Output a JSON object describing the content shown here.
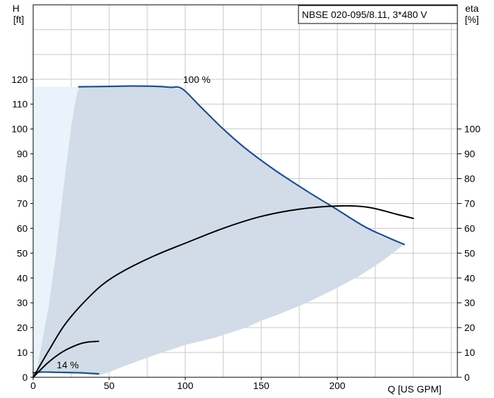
{
  "chart_data": {
    "type": "line",
    "title": "",
    "legend": "NBSE 020-095/8.11, 3*480 V",
    "xlabel": "Q [US GPM]",
    "ylabel_left": [
      "H",
      "[ft]"
    ],
    "ylabel_right": [
      "eta",
      "[%]"
    ],
    "x_ticks": [
      0,
      50,
      100,
      150,
      200
    ],
    "y_ticks_left": [
      0,
      10,
      20,
      30,
      40,
      50,
      60,
      70,
      80,
      90,
      100,
      110,
      120
    ],
    "y_ticks_right": [
      0,
      10,
      20,
      30,
      40,
      50,
      60,
      70,
      80,
      90,
      100
    ],
    "xlim": [
      0,
      279
    ],
    "ylim": [
      0,
      150
    ],
    "grid": true,
    "legend_position": "top-right",
    "annotations": [
      {
        "text": "100 %",
        "x": 100,
        "y": 120
      },
      {
        "text": "14 %",
        "x": 13,
        "y": 2.5
      }
    ],
    "regions": [
      {
        "name": "operating range",
        "color": "#d1dce8",
        "outline": [
          [
            30,
            117
          ],
          [
            55,
            117.2
          ],
          [
            65,
            117.3
          ],
          [
            80,
            117.2
          ],
          [
            98,
            116.2
          ],
          [
            110,
            109
          ],
          [
            125,
            100
          ],
          [
            140,
            92
          ],
          [
            160,
            83
          ],
          [
            180,
            75
          ],
          [
            200,
            67.5
          ],
          [
            220,
            60
          ],
          [
            228,
            57
          ],
          [
            244,
            53.5
          ],
          [
            230,
            47
          ],
          [
            215,
            41
          ],
          [
            200,
            36
          ],
          [
            180,
            30
          ],
          [
            160,
            25
          ],
          [
            150,
            22.8
          ],
          [
            140,
            20
          ],
          [
            120,
            16
          ],
          [
            100,
            13
          ],
          [
            80,
            9
          ],
          [
            60,
            4.5
          ],
          [
            50,
            2
          ],
          [
            43,
            0.8
          ],
          [
            33,
            1.5
          ],
          [
            10,
            1.8
          ],
          [
            2,
            1.8
          ],
          [
            10,
            28
          ],
          [
            15,
            50
          ],
          [
            20,
            77
          ],
          [
            25,
            101
          ],
          [
            28,
            112
          ],
          [
            30,
            117
          ]
        ]
      },
      {
        "name": "extended range",
        "color": "#eaf3fb",
        "outline": [
          [
            0,
            117
          ],
          [
            30,
            117
          ],
          [
            28,
            112
          ],
          [
            25,
            101
          ],
          [
            20,
            77
          ],
          [
            15,
            50
          ],
          [
            10,
            28
          ],
          [
            2,
            1.8
          ],
          [
            0,
            0
          ]
        ]
      }
    ],
    "series": [
      {
        "name": "H 100 %",
        "axis": "left",
        "color": "#1f4e8c",
        "points": [
          [
            30,
            117
          ],
          [
            55,
            117.2
          ],
          [
            65,
            117.3
          ],
          [
            80,
            117.2
          ],
          [
            90,
            116.8
          ],
          [
            98,
            116.2
          ],
          [
            110,
            109
          ],
          [
            125,
            100
          ],
          [
            140,
            92
          ],
          [
            160,
            83
          ],
          [
            180,
            75
          ],
          [
            200,
            67.5
          ],
          [
            220,
            60
          ],
          [
            244,
            53.5
          ]
        ]
      },
      {
        "name": "H 14 %",
        "axis": "left",
        "color": "#1f4e8c",
        "points": [
          [
            0,
            1.8
          ],
          [
            5,
            2.1
          ],
          [
            15,
            2.0
          ],
          [
            30,
            1.8
          ],
          [
            43,
            1.4
          ]
        ]
      },
      {
        "name": "eta 100 %",
        "axis": "right",
        "color": "#000000",
        "points": [
          [
            0,
            0
          ],
          [
            10,
            10.5
          ],
          [
            20,
            20.5
          ],
          [
            30,
            28
          ],
          [
            45,
            37
          ],
          [
            60,
            43
          ],
          [
            80,
            49
          ],
          [
            100,
            54
          ],
          [
            125,
            60
          ],
          [
            150,
            64.8
          ],
          [
            175,
            67.7
          ],
          [
            200,
            69
          ],
          [
            220,
            68.5
          ],
          [
            240,
            65.5
          ],
          [
            250,
            64
          ]
        ]
      },
      {
        "name": "eta 14 %",
        "axis": "right",
        "color": "#000000",
        "points": [
          [
            0,
            0
          ],
          [
            10,
            6
          ],
          [
            20,
            10.5
          ],
          [
            30,
            13.3
          ],
          [
            36,
            14.2
          ],
          [
            43,
            14.5
          ]
        ]
      }
    ]
  }
}
